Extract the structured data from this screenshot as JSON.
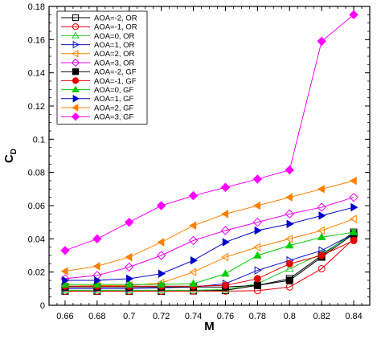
{
  "chart_data": {
    "type": "line",
    "xlabel": "M",
    "ylabel_main": "C",
    "ylabel_sub": "D",
    "xlim": [
      0.65,
      0.85
    ],
    "ylim": [
      0,
      0.18
    ],
    "xticks": [
      0.66,
      0.68,
      0.7,
      0.72,
      0.74,
      0.76,
      0.78,
      0.8,
      0.82,
      0.84
    ],
    "xtick_labels": [
      "0.66",
      "0.68",
      "0.7",
      "0.72",
      "0.74",
      "0.76",
      "0.78",
      "0.8",
      "0.82",
      "0.84"
    ],
    "yticks": [
      0,
      0.02,
      0.04,
      0.06,
      0.08,
      0.1,
      0.12,
      0.14,
      0.16,
      0.18
    ],
    "ytick_labels": [
      "0",
      "0.02",
      "0.04",
      "0.06",
      "0.08",
      "0.1",
      "0.12",
      "0.14",
      "0.16",
      "0.18"
    ],
    "x": [
      0.66,
      0.68,
      0.7,
      0.72,
      0.74,
      0.76,
      0.78,
      0.8,
      0.82,
      0.84
    ],
    "legend_position": "top-left",
    "grid": false,
    "series": [
      {
        "name": "AOA=-2, OR",
        "color": "#000000",
        "marker": "square",
        "filled": false,
        "values": [
          0.0085,
          0.0085,
          0.0085,
          0.0085,
          0.0087,
          0.009,
          0.012,
          0.016,
          0.03,
          0.044
        ]
      },
      {
        "name": "AOA=-1, OR",
        "color": "#e60000",
        "marker": "circle",
        "filled": false,
        "values": [
          0.0085,
          0.0085,
          0.0085,
          0.0085,
          0.0085,
          0.0085,
          0.0088,
          0.011,
          0.022,
          0.04
        ]
      },
      {
        "name": "AOA=0, OR",
        "color": "#22cc22",
        "marker": "triangle-up",
        "filled": false,
        "values": [
          0.009,
          0.009,
          0.009,
          0.009,
          0.009,
          0.0095,
          0.013,
          0.022,
          0.031,
          0.043
        ]
      },
      {
        "name": "AOA=1, OR",
        "color": "#1111cc",
        "marker": "triangle-right",
        "filled": false,
        "values": [
          0.01,
          0.01,
          0.01,
          0.0105,
          0.011,
          0.013,
          0.021,
          0.027,
          0.033,
          0.043
        ]
      },
      {
        "name": "AOA=2, OR",
        "color": "#ff8000",
        "marker": "triangle-left",
        "filled": false,
        "values": [
          0.0115,
          0.0118,
          0.012,
          0.0135,
          0.02,
          0.029,
          0.035,
          0.04,
          0.045,
          0.052
        ]
      },
      {
        "name": "AOA=3, OR",
        "color": "#ee00ee",
        "marker": "diamond",
        "filled": false,
        "values": [
          0.016,
          0.018,
          0.023,
          0.03,
          0.039,
          0.045,
          0.05,
          0.055,
          0.059,
          0.065
        ]
      },
      {
        "name": "AOA=-2, GF",
        "color": "#000000",
        "marker": "square",
        "filled": true,
        "values": [
          0.011,
          0.011,
          0.011,
          0.011,
          0.011,
          0.011,
          0.012,
          0.015,
          0.029,
          0.043
        ]
      },
      {
        "name": "AOA=-1, GF",
        "color": "#e60000",
        "marker": "circle",
        "filled": true,
        "values": [
          0.0115,
          0.0115,
          0.0115,
          0.0115,
          0.0115,
          0.012,
          0.016,
          0.025,
          0.03,
          0.039
        ]
      },
      {
        "name": "AOA=0, GF",
        "color": "#00cc00",
        "marker": "triangle-up",
        "filled": true,
        "values": [
          0.0125,
          0.0125,
          0.0125,
          0.0125,
          0.013,
          0.019,
          0.03,
          0.036,
          0.041,
          0.044
        ]
      },
      {
        "name": "AOA=1, GF",
        "color": "#0000cc",
        "marker": "triangle-right",
        "filled": true,
        "values": [
          0.015,
          0.015,
          0.016,
          0.019,
          0.027,
          0.038,
          0.045,
          0.049,
          0.054,
          0.059
        ]
      },
      {
        "name": "AOA=2, GF",
        "color": "#ff8000",
        "marker": "triangle-left",
        "filled": true,
        "values": [
          0.0205,
          0.0235,
          0.029,
          0.038,
          0.048,
          0.055,
          0.06,
          0.065,
          0.07,
          0.075
        ]
      },
      {
        "name": "AOA=3, GF",
        "color": "#ff00ff",
        "marker": "diamond",
        "filled": true,
        "values": [
          0.033,
          0.04,
          0.05,
          0.06,
          0.066,
          0.071,
          0.076,
          0.0815,
          0.159,
          0.175
        ]
      }
    ]
  }
}
